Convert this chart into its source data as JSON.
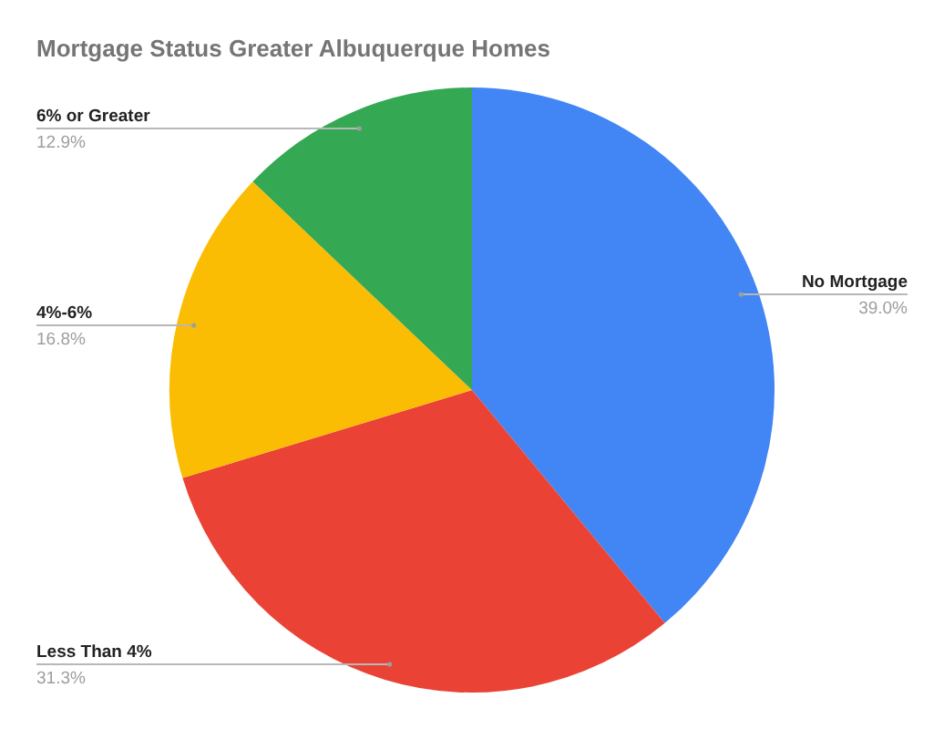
{
  "chart_data": {
    "type": "pie",
    "title": "Mortgage Status Greater Albuquerque Homes",
    "categories": [
      "No Mortgage",
      "Less Than 4%",
      "4%-6%",
      "6% or Greater"
    ],
    "values": [
      39.0,
      31.3,
      16.8,
      12.9
    ],
    "colors": [
      "#4285f4",
      "#ea4335",
      "#fbbc04",
      "#34a853"
    ],
    "value_labels": [
      "39.0%",
      "31.3%",
      "16.8%",
      "12.9%"
    ]
  }
}
